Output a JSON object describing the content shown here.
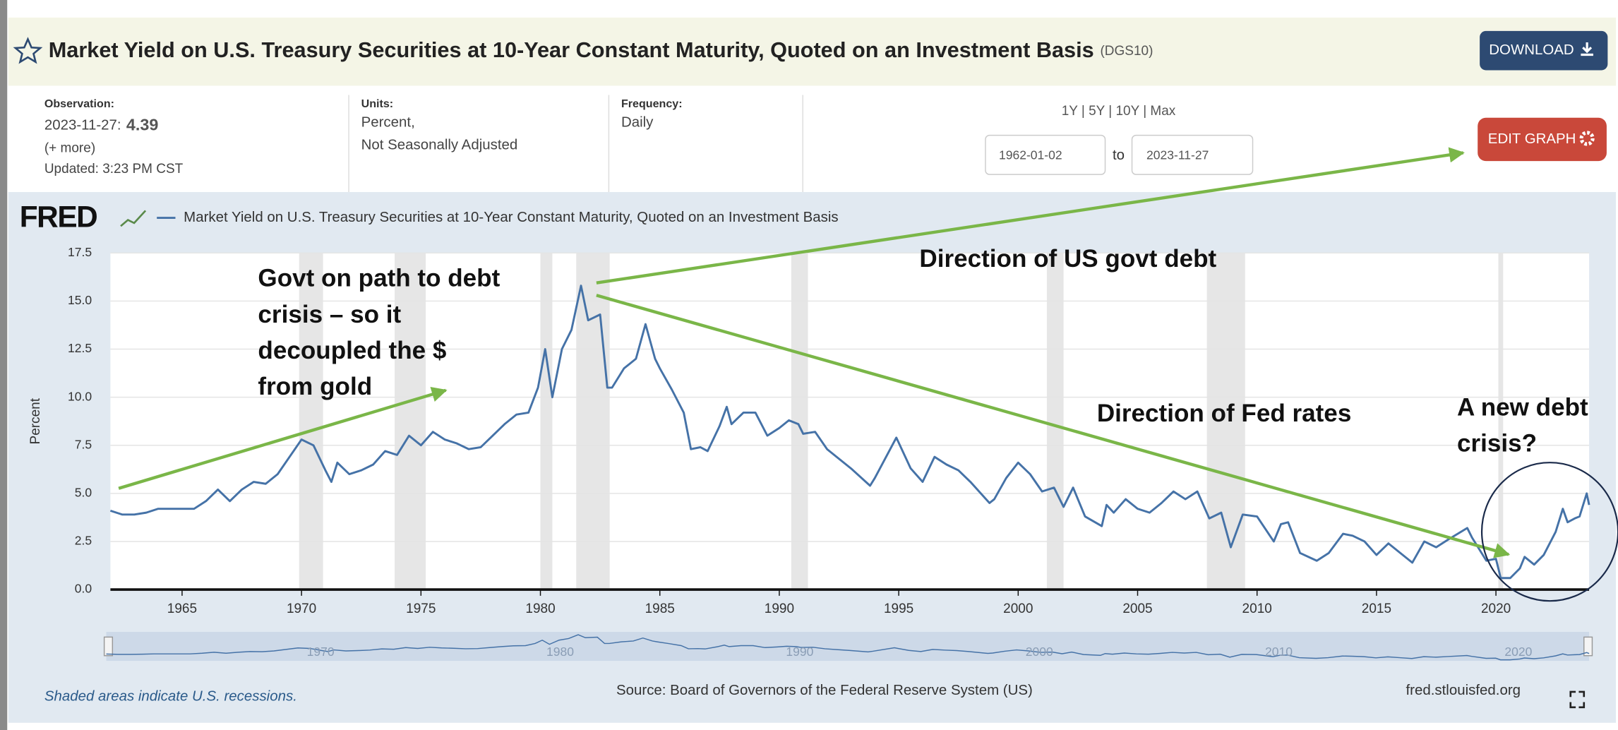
{
  "header": {
    "title": "Market Yield on U.S. Treasury Securities at 10-Year Constant Maturity, Quoted on an Investment Basis",
    "series_id": "(DGS10)",
    "download_button": "DOWNLOAD"
  },
  "info": {
    "observation_label": "Observation:",
    "observation_date": "2023-11-27:",
    "observation_value": 4.39,
    "more_link": "(+ more)",
    "updated": "Updated: 3:23 PM CST",
    "units_label": "Units:",
    "units_lines": [
      "Percent,",
      "Not Seasonally Adjusted"
    ],
    "frequency_label": "Frequency:",
    "frequency": "Daily"
  },
  "range": {
    "presets": "1Y | 5Y | 10Y | Max",
    "start": "1962-01-02",
    "separator": "to",
    "end": "2023-11-27"
  },
  "edit_graph_button": "EDIT GRAPH",
  "chart_data": {
    "type": "line",
    "logo": "FRED",
    "ylabel": "Percent",
    "x": [
      1962,
      1962.5,
      1963,
      1963.5,
      1964,
      1964.5,
      1965,
      1965.5,
      1966,
      1966.5,
      1967,
      1967.5,
      1968,
      1968.5,
      1969,
      1969.5,
      1970,
      1970.5,
      1971,
      1971.25,
      1971.5,
      1972,
      1972.5,
      1973,
      1973.5,
      1974,
      1974.5,
      1975,
      1975.5,
      1976,
      1976.5,
      1977,
      1977.5,
      1978,
      1978.5,
      1979,
      1979.5,
      1979.9,
      1980.2,
      1980.5,
      1980.9,
      1981.3,
      1981.7,
      1982,
      1982.5,
      1982.8,
      1983,
      1983.5,
      1984,
      1984.4,
      1984.8,
      1985,
      1985.5,
      1986,
      1986.3,
      1986.7,
      1987,
      1987.5,
      1987.8,
      1988,
      1988.5,
      1989,
      1989.5,
      1990,
      1990.4,
      1990.8,
      1991,
      1991.5,
      1992,
      1992.5,
      1993,
      1993.8,
      1994,
      1994.9,
      1995.5,
      1996,
      1996.5,
      1997,
      1997.5,
      1998,
      1998.8,
      1999,
      1999.5,
      2000,
      2000.5,
      2001,
      2001.5,
      2001.9,
      2002.3,
      2002.8,
      2003.5,
      2003.7,
      2004,
      2004.5,
      2005,
      2005.5,
      2006,
      2006.5,
      2007,
      2007.5,
      2008,
      2008.5,
      2008.9,
      2009.4,
      2010,
      2010.7,
      2011,
      2011.3,
      2011.8,
      2012.5,
      2013,
      2013.6,
      2014,
      2014.5,
      2015,
      2015.5,
      2016,
      2016.5,
      2017,
      2017.5,
      2018,
      2018.8,
      2019,
      2019.6,
      2020,
      2020.2,
      2020.6,
      2021,
      2021.2,
      2021.6,
      2022,
      2022.5,
      2022.8,
      2023,
      2023.3,
      2023.5,
      2023.8,
      2023.9
    ],
    "series": [
      {
        "name": "Market Yield on U.S. Treasury Securities at 10-Year Constant Maturity, Quoted on an Investment Basis",
        "color": "#4572a7",
        "values": [
          4.1,
          3.9,
          3.9,
          4.0,
          4.2,
          4.2,
          4.2,
          4.2,
          4.6,
          5.2,
          4.6,
          5.2,
          5.6,
          5.5,
          6.0,
          6.9,
          7.8,
          7.5,
          6.2,
          5.6,
          6.6,
          6.0,
          6.2,
          6.5,
          7.2,
          7.0,
          8.0,
          7.5,
          8.2,
          7.8,
          7.6,
          7.3,
          7.4,
          8.0,
          8.6,
          9.1,
          9.2,
          10.5,
          12.5,
          10.0,
          12.5,
          13.5,
          15.8,
          14.0,
          14.3,
          10.5,
          10.5,
          11.5,
          12.0,
          13.8,
          12.0,
          11.5,
          10.4,
          9.2,
          7.3,
          7.4,
          7.2,
          8.5,
          9.5,
          8.6,
          9.2,
          9.2,
          8.0,
          8.4,
          8.8,
          8.6,
          8.1,
          8.2,
          7.3,
          6.8,
          6.3,
          5.4,
          5.8,
          7.9,
          6.3,
          5.6,
          6.9,
          6.5,
          6.2,
          5.6,
          4.5,
          4.7,
          5.8,
          6.6,
          6.0,
          5.1,
          5.3,
          4.3,
          5.3,
          3.8,
          3.3,
          4.4,
          4.0,
          4.7,
          4.2,
          4.0,
          4.5,
          5.1,
          4.7,
          5.1,
          3.7,
          4.0,
          2.2,
          3.9,
          3.8,
          2.5,
          3.4,
          3.5,
          1.9,
          1.5,
          1.9,
          2.9,
          2.8,
          2.5,
          1.8,
          2.4,
          1.9,
          1.4,
          2.5,
          2.2,
          2.6,
          3.2,
          2.7,
          1.5,
          1.6,
          0.6,
          0.6,
          1.1,
          1.7,
          1.3,
          1.8,
          3.0,
          4.2,
          3.5,
          3.7,
          3.8,
          5.0,
          4.4
        ]
      }
    ],
    "xlim": [
      1962,
      2023.9
    ],
    "ylim": [
      0,
      17.5
    ],
    "xticks": [
      1965,
      1970,
      1975,
      1980,
      1985,
      1990,
      1995,
      2000,
      2005,
      2010,
      2015,
      2020
    ],
    "yticks": [
      {
        "value": 0,
        "label": "0.0"
      },
      2.5,
      {
        "value": 5,
        "label": "5.0"
      },
      7.5,
      {
        "value": 10,
        "label": "10.0"
      },
      12.5,
      {
        "value": 15,
        "label": "15.0"
      },
      17.5
    ],
    "grid": true,
    "recessions": [
      [
        1969.9,
        1970.9
      ],
      [
        1973.9,
        1975.2
      ],
      [
        1980.0,
        1980.5
      ],
      [
        1981.5,
        1982.9
      ],
      [
        1990.5,
        1991.2
      ],
      [
        2001.2,
        2001.9
      ],
      [
        2007.9,
        2009.5
      ],
      [
        2020.1,
        2020.3
      ]
    ],
    "navigator_ticks": [
      1970,
      1980,
      1990,
      2000,
      2010,
      2020
    ],
    "annotations": [
      {
        "lines": [
          "Govt on path to debt",
          "crisis – so it",
          "decoupled the $",
          "from gold"
        ]
      },
      {
        "lines": [
          "Direction of US govt debt"
        ]
      },
      {
        "lines": [
          "Direction of Fed rates"
        ]
      },
      {
        "lines": [
          "A new debt",
          "crisis?"
        ]
      }
    ]
  },
  "footer": {
    "recession_note": "Shaded areas indicate U.S. recessions.",
    "source": "Source: Board of Governors of the Federal Reserve System (US)",
    "site": "fred.stlouisfed.org"
  }
}
